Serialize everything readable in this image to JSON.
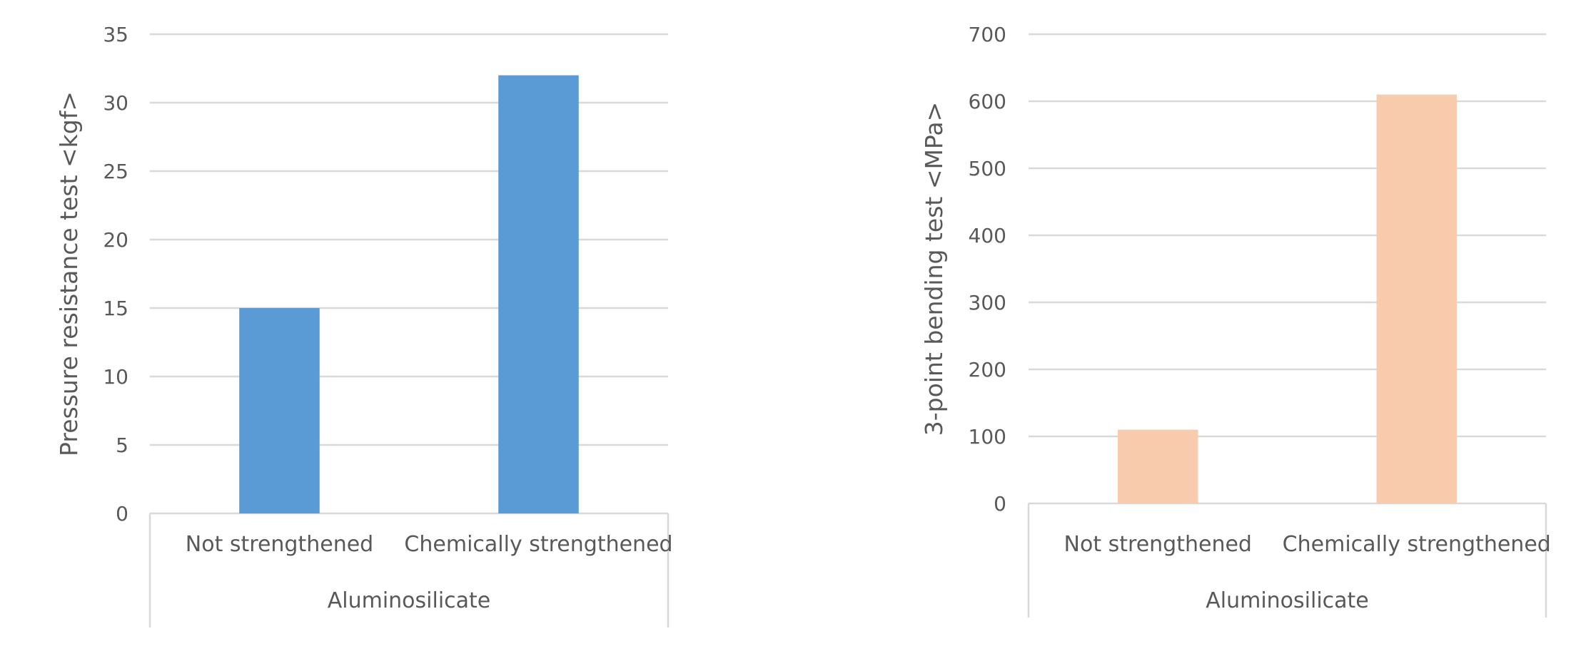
{
  "chart_data": [
    {
      "type": "bar",
      "title": "",
      "xlabel": "",
      "ylabel": "Pressure resistance test <kgf>",
      "group_label": "Aluminosilicate",
      "categories": [
        "Not strengthened",
        "Chemically strengthened"
      ],
      "values": [
        15,
        32
      ],
      "ylim": [
        0,
        35
      ],
      "yticks": [
        0,
        5,
        10,
        15,
        20,
        25,
        30,
        35
      ],
      "bar_color": "#5b9bd5",
      "grid": true,
      "legend": "none"
    },
    {
      "type": "bar",
      "title": "",
      "xlabel": "",
      "ylabel": "3-point bending test <MPa>",
      "group_label": "Aluminosilicate",
      "categories": [
        "Not strengthened",
        "Chemically strengthened"
      ],
      "values": [
        110,
        610
      ],
      "ylim": [
        0,
        700
      ],
      "yticks": [
        0,
        100,
        200,
        300,
        400,
        500,
        600,
        700
      ],
      "bar_color": "#f8cbad",
      "grid": true,
      "legend": "none"
    }
  ]
}
